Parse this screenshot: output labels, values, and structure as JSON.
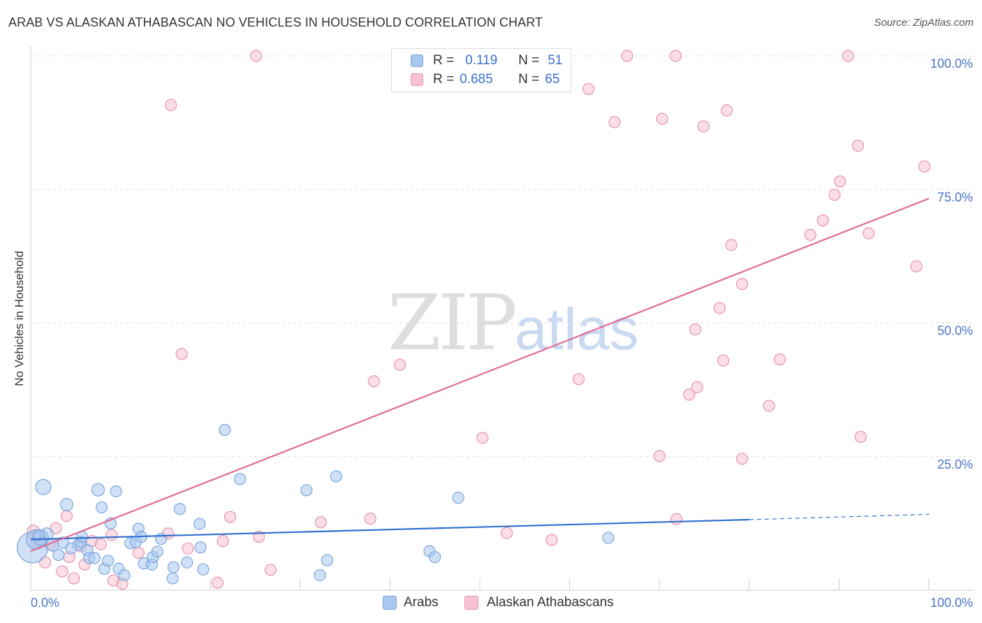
{
  "title": "ARAB VS ALASKAN ATHABASCAN NO VEHICLES IN HOUSEHOLD CORRELATION CHART",
  "source": "Source: ZipAtlas.com",
  "watermark": {
    "zip": "ZIP",
    "atlas": "atlas"
  },
  "legend": {
    "arabs": {
      "r_label": "R =",
      "r_value": "0.119",
      "n_label": "N =",
      "n_value": "51"
    },
    "alaskan": {
      "r_label": "R =",
      "r_value": "0.685",
      "n_label": "N =",
      "n_value": "65"
    }
  },
  "bottom_legend": {
    "arabs": "Arabs",
    "alaskan": "Alaskan Athabascans"
  },
  "colors": {
    "arab_fill": "#a9c8f0",
    "arab_stroke": "#7aa6dd",
    "arab_line": "#2f6fcf",
    "alaskan_fill": "#f7c3d2",
    "alaskan_stroke": "#e793ae",
    "alaskan_line": "#e06b96",
    "grid": "#dddddd",
    "tick_text": "#4a74c8"
  },
  "chart_data": {
    "type": "scatter",
    "title": "ARAB VS ALASKAN ATHABASCAN NO VEHICLES IN HOUSEHOLD CORRELATION CHART",
    "xlabel": "",
    "ylabel": "No Vehicles in Household",
    "xlim": [
      0,
      100
    ],
    "ylim": [
      0,
      100
    ],
    "x_tick_labels": [
      "0.0%",
      "100.0%"
    ],
    "y_ticks": [
      25,
      50,
      75,
      100
    ],
    "y_tick_labels": [
      "25.0%",
      "50.0%",
      "75.0%",
      "100.0%"
    ],
    "series": [
      {
        "name": "Arabs",
        "r": 0.119,
        "n": 51,
        "trend": {
          "x0": 0,
          "y0": 9.5,
          "x1": 80,
          "y1": 13.2,
          "dashed_to_x": 100,
          "dashed_to_y": 14.2
        },
        "points": [
          {
            "x": 0.2,
            "y": 8.0,
            "s": 22
          },
          {
            "x": 0.6,
            "y": 9.5,
            "s": 14
          },
          {
            "x": 1.1,
            "y": 9.8,
            "s": 11
          },
          {
            "x": 1.4,
            "y": 19.3,
            "s": 11
          },
          {
            "x": 1.8,
            "y": 10.5,
            "s": 9
          },
          {
            "x": 2.4,
            "y": 8.5,
            "s": 9
          },
          {
            "x": 3.1,
            "y": 6.6,
            "s": 8
          },
          {
            "x": 3.6,
            "y": 8.9,
            "s": 8
          },
          {
            "x": 4.0,
            "y": 16.0,
            "s": 9
          },
          {
            "x": 4.5,
            "y": 7.8,
            "s": 8
          },
          {
            "x": 5.3,
            "y": 8.5,
            "s": 8
          },
          {
            "x": 5.6,
            "y": 9.0,
            "s": 8
          },
          {
            "x": 5.7,
            "y": 10.0,
            "s": 8
          },
          {
            "x": 6.3,
            "y": 7.5,
            "s": 8
          },
          {
            "x": 6.5,
            "y": 6.0,
            "s": 8
          },
          {
            "x": 7.1,
            "y": 6.0,
            "s": 8
          },
          {
            "x": 7.5,
            "y": 18.8,
            "s": 9
          },
          {
            "x": 7.9,
            "y": 15.5,
            "s": 8
          },
          {
            "x": 8.2,
            "y": 4.0,
            "s": 8
          },
          {
            "x": 8.6,
            "y": 5.5,
            "s": 8
          },
          {
            "x": 8.9,
            "y": 12.5,
            "s": 8
          },
          {
            "x": 9.5,
            "y": 18.5,
            "s": 8
          },
          {
            "x": 9.8,
            "y": 4.0,
            "s": 8
          },
          {
            "x": 10.4,
            "y": 2.8,
            "s": 8
          },
          {
            "x": 11.1,
            "y": 8.8,
            "s": 8
          },
          {
            "x": 11.7,
            "y": 9.0,
            "s": 8
          },
          {
            "x": 12.0,
            "y": 11.5,
            "s": 8
          },
          {
            "x": 12.3,
            "y": 10.0,
            "s": 8
          },
          {
            "x": 12.6,
            "y": 5.0,
            "s": 8
          },
          {
            "x": 13.5,
            "y": 4.8,
            "s": 8
          },
          {
            "x": 13.6,
            "y": 6.2,
            "s": 8
          },
          {
            "x": 14.1,
            "y": 7.2,
            "s": 8
          },
          {
            "x": 14.5,
            "y": 9.6,
            "s": 8
          },
          {
            "x": 15.8,
            "y": 2.2,
            "s": 8
          },
          {
            "x": 15.9,
            "y": 4.3,
            "s": 8
          },
          {
            "x": 16.6,
            "y": 15.2,
            "s": 8
          },
          {
            "x": 17.4,
            "y": 5.2,
            "s": 8
          },
          {
            "x": 18.8,
            "y": 12.4,
            "s": 8
          },
          {
            "x": 18.9,
            "y": 8.0,
            "s": 8
          },
          {
            "x": 19.2,
            "y": 3.9,
            "s": 8
          },
          {
            "x": 21.6,
            "y": 30.0,
            "s": 8
          },
          {
            "x": 23.3,
            "y": 20.8,
            "s": 8
          },
          {
            "x": 30.7,
            "y": 18.7,
            "s": 8
          },
          {
            "x": 32.2,
            "y": 2.8,
            "s": 8
          },
          {
            "x": 33.0,
            "y": 5.6,
            "s": 8
          },
          {
            "x": 34.0,
            "y": 21.3,
            "s": 8
          },
          {
            "x": 44.4,
            "y": 7.3,
            "s": 8
          },
          {
            "x": 45.0,
            "y": 6.2,
            "s": 8
          },
          {
            "x": 47.6,
            "y": 17.3,
            "s": 8
          },
          {
            "x": 64.3,
            "y": 9.8,
            "s": 8
          },
          {
            "x": 0.9,
            "y": 10.3,
            "s": 8
          }
        ]
      },
      {
        "name": "Alaskan Athabascans",
        "r": 0.685,
        "n": 65,
        "trend": {
          "x0": 0,
          "y0": 7.3,
          "x1": 100,
          "y1": 73.3
        },
        "points": [
          {
            "x": 0.3,
            "y": 11.0,
            "s": 9
          },
          {
            "x": 0.7,
            "y": 9.2,
            "s": 9
          },
          {
            "x": 1.6,
            "y": 5.2,
            "s": 8
          },
          {
            "x": 2.1,
            "y": 8.6,
            "s": 8
          },
          {
            "x": 2.8,
            "y": 11.6,
            "s": 8
          },
          {
            "x": 3.5,
            "y": 3.5,
            "s": 8
          },
          {
            "x": 4.0,
            "y": 13.9,
            "s": 8
          },
          {
            "x": 4.3,
            "y": 6.2,
            "s": 8
          },
          {
            "x": 4.8,
            "y": 2.2,
            "s": 8
          },
          {
            "x": 5.6,
            "y": 8.2,
            "s": 8
          },
          {
            "x": 6.0,
            "y": 4.8,
            "s": 8
          },
          {
            "x": 6.8,
            "y": 9.2,
            "s": 8
          },
          {
            "x": 7.8,
            "y": 8.6,
            "s": 8
          },
          {
            "x": 9.0,
            "y": 10.3,
            "s": 8
          },
          {
            "x": 9.2,
            "y": 1.8,
            "s": 8
          },
          {
            "x": 10.2,
            "y": 1.2,
            "s": 8
          },
          {
            "x": 12.0,
            "y": 7.0,
            "s": 8
          },
          {
            "x": 15.3,
            "y": 10.6,
            "s": 8
          },
          {
            "x": 15.6,
            "y": 90.8,
            "s": 8
          },
          {
            "x": 16.8,
            "y": 44.2,
            "s": 8
          },
          {
            "x": 17.5,
            "y": 7.8,
            "s": 8
          },
          {
            "x": 20.8,
            "y": 1.4,
            "s": 8
          },
          {
            "x": 21.4,
            "y": 9.2,
            "s": 8
          },
          {
            "x": 22.2,
            "y": 13.7,
            "s": 8
          },
          {
            "x": 25.1,
            "y": 100.0,
            "s": 8
          },
          {
            "x": 25.4,
            "y": 10.0,
            "s": 8
          },
          {
            "x": 26.7,
            "y": 3.8,
            "s": 8
          },
          {
            "x": 32.3,
            "y": 12.7,
            "s": 8
          },
          {
            "x": 37.8,
            "y": 13.4,
            "s": 8
          },
          {
            "x": 38.2,
            "y": 39.1,
            "s": 8
          },
          {
            "x": 41.1,
            "y": 42.2,
            "s": 8
          },
          {
            "x": 50.3,
            "y": 28.5,
            "s": 8
          },
          {
            "x": 53.0,
            "y": 10.7,
            "s": 8
          },
          {
            "x": 58.0,
            "y": 9.4,
            "s": 8
          },
          {
            "x": 61.0,
            "y": 39.5,
            "s": 8
          },
          {
            "x": 62.1,
            "y": 93.8,
            "s": 8
          },
          {
            "x": 65.0,
            "y": 87.6,
            "s": 8
          },
          {
            "x": 66.4,
            "y": 100.0,
            "s": 8
          },
          {
            "x": 70.0,
            "y": 25.1,
            "s": 8
          },
          {
            "x": 70.3,
            "y": 88.2,
            "s": 8
          },
          {
            "x": 71.8,
            "y": 100.0,
            "s": 8
          },
          {
            "x": 71.9,
            "y": 13.3,
            "s": 8
          },
          {
            "x": 73.3,
            "y": 36.6,
            "s": 8
          },
          {
            "x": 74.0,
            "y": 48.8,
            "s": 8
          },
          {
            "x": 74.2,
            "y": 38.0,
            "s": 8
          },
          {
            "x": 74.9,
            "y": 86.8,
            "s": 8
          },
          {
            "x": 76.7,
            "y": 52.8,
            "s": 8
          },
          {
            "x": 77.1,
            "y": 43.0,
            "s": 8
          },
          {
            "x": 77.5,
            "y": 89.8,
            "s": 8
          },
          {
            "x": 78.0,
            "y": 64.6,
            "s": 8
          },
          {
            "x": 79.2,
            "y": 57.3,
            "s": 8
          },
          {
            "x": 79.2,
            "y": 24.6,
            "s": 8
          },
          {
            "x": 82.2,
            "y": 34.5,
            "s": 8
          },
          {
            "x": 83.4,
            "y": 43.2,
            "s": 8
          },
          {
            "x": 86.8,
            "y": 66.5,
            "s": 8
          },
          {
            "x": 88.2,
            "y": 69.2,
            "s": 8
          },
          {
            "x": 89.5,
            "y": 74.0,
            "s": 8
          },
          {
            "x": 90.1,
            "y": 76.5,
            "s": 8
          },
          {
            "x": 91.0,
            "y": 100.0,
            "s": 8
          },
          {
            "x": 92.1,
            "y": 83.2,
            "s": 8
          },
          {
            "x": 92.4,
            "y": 28.7,
            "s": 8
          },
          {
            "x": 93.3,
            "y": 66.8,
            "s": 8
          },
          {
            "x": 98.6,
            "y": 60.6,
            "s": 8
          },
          {
            "x": 99.5,
            "y": 79.3,
            "s": 8
          },
          {
            "x": 0.5,
            "y": 10.2,
            "s": 8
          }
        ]
      }
    ]
  }
}
